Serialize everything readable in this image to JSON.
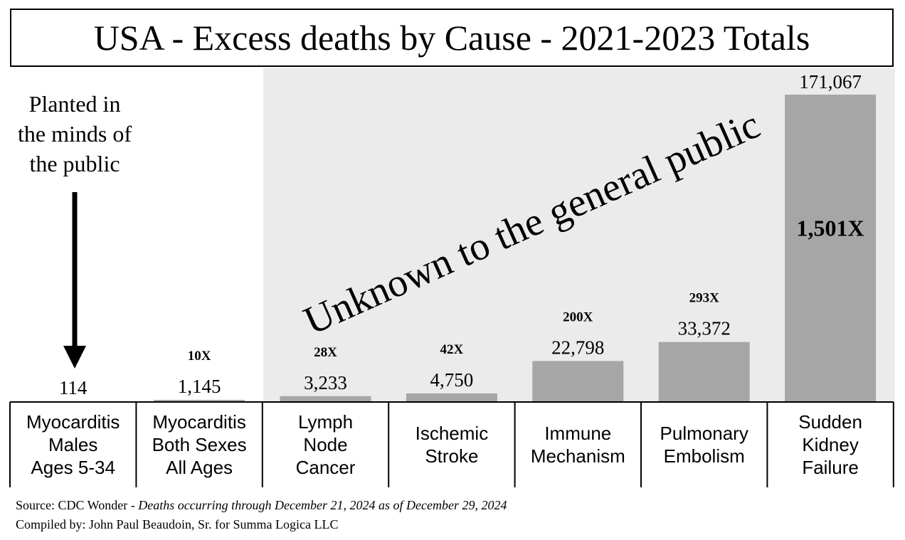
{
  "title": "USA - Excess deaths by Cause - 2021-2023 Totals",
  "annotations": {
    "planted": [
      "Planted in",
      "the minds of",
      "the public"
    ],
    "unknown": "Unknown to the general public"
  },
  "source": {
    "prefix": "Source:  CDC Wonder - ",
    "italic": "Deaths occurring through December 21, 2024 as of December 29, 2024",
    "compiled": "Compiled by:  John Paul Beaudoin, Sr. for Summa Logica LLC"
  },
  "colors": {
    "bar": "#a6a6a6",
    "shaded_background": "#ebebeb",
    "axis": "#000000"
  },
  "chart_data": {
    "type": "bar",
    "title": "USA - Excess deaths by Cause - 2021-2023 Totals",
    "categories": [
      [
        "Myocarditis",
        "Males",
        "Ages 5-34"
      ],
      [
        "Myocarditis",
        "Both Sexes",
        "All Ages"
      ],
      [
        "Lymph",
        "Node",
        "Cancer"
      ],
      [
        "Ischemic",
        "Stroke"
      ],
      [
        "Immune",
        "Mechanism"
      ],
      [
        "Pulmonary",
        "Embolism"
      ],
      [
        "Sudden",
        "Kidney",
        "Failure"
      ]
    ],
    "values": [
      114,
      1145,
      3233,
      4750,
      22798,
      33372,
      171067
    ],
    "value_labels": [
      "114",
      "1,145",
      "3,233",
      "4,750",
      "22,798",
      "33,372",
      "171,067"
    ],
    "multipliers": [
      "",
      "10X",
      "28X",
      "42X",
      "200X",
      "293X",
      "1,501X"
    ],
    "ylim": [
      0,
      171067
    ],
    "grid": false,
    "legend": "none"
  }
}
